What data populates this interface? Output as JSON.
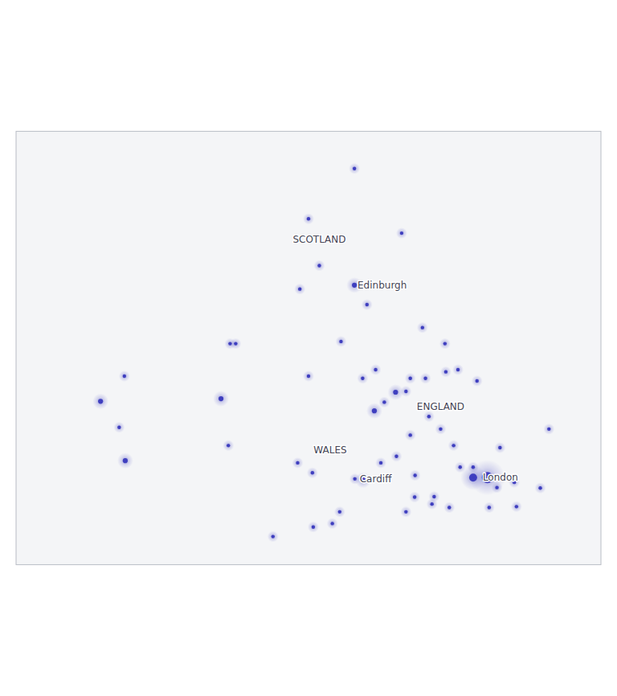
{
  "chart_data": {
    "type": "scatter",
    "x": [
      -4.25,
      -3.19,
      -2.1,
      -4.45,
      -3.19,
      -2.9,
      -1.62,
      -1.1,
      -2.24,
      -1.9,
      -1.55,
      -1.08,
      -0.36,
      -1.47,
      -1.9,
      -2.22,
      -0.12,
      -0.45,
      0.5,
      0.1,
      1.1,
      -1.4,
      -0.08,
      0.55,
      -1.0,
      -2.0,
      -3.53,
      -4.14,
      -5.07,
      -3.18,
      -4.16,
      -2.99,
      -1.8,
      -1.79,
      -0.75,
      0.17,
      1.3,
      -2.73,
      -3.0,
      -4.25,
      -3.5,
      -2.7,
      -0.9,
      -2.58,
      -6.27,
      -8.48,
      -6.1,
      -8.62,
      -9.05,
      -8.5,
      -6.06,
      -5.93,
      -2.0,
      -0.8,
      -1.2,
      -3.7,
      -4.5,
      -2.5,
      -1.35,
      -0.45,
      -4.0
    ],
    "values": [
      57.48,
      58.64,
      57.15,
      55.86,
      55.95,
      55.5,
      54.97,
      54.6,
      53.48,
      53.8,
      53.8,
      53.95,
      53.74,
      52.92,
      52.49,
      52.0,
      51.51,
      51.51,
      51.4,
      51.28,
      51.27,
      50.9,
      50.82,
      50.84,
      50.82,
      50.72,
      50.72,
      50.37,
      50.15,
      51.48,
      51.62,
      51.45,
      51.06,
      51.56,
      51.75,
      52.2,
      52.63,
      53.05,
      53.8,
      53.85,
      54.65,
      54.0,
      52.25,
      51.85,
      53.33,
      51.9,
      52.25,
      52.67,
      53.27,
      53.85,
      54.6,
      54.6,
      53.5,
      54.0,
      52.63,
      50.45,
      51.85,
      53.25,
      51.07,
      51.75,
      56.4
    ],
    "sizes": [
      1,
      1,
      1,
      1,
      2,
      1,
      1,
      1,
      2,
      1,
      1,
      1,
      1,
      1,
      1,
      1,
      10,
      5,
      1,
      1,
      1,
      1,
      1,
      1,
      1,
      1,
      1,
      1,
      1,
      1,
      1,
      2,
      1,
      1,
      1,
      1,
      1,
      2,
      1,
      1,
      1,
      1,
      1,
      1,
      2,
      2,
      1,
      1,
      2,
      1,
      1,
      1,
      1,
      1,
      1,
      1,
      1,
      1,
      1,
      1,
      1
    ],
    "color": "#3333bb",
    "xlim": [
      -11.0,
      2.5
    ],
    "ylim": [
      49.5,
      59.5
    ],
    "tick_labels": false,
    "grid": false,
    "annotations": [
      {
        "text": "SCOTLAND",
        "x": -4.0,
        "y": 57.0
      },
      {
        "text": "ENGLAND",
        "x": -1.2,
        "y": 53.15
      },
      {
        "text": "WALES",
        "x": -3.75,
        "y": 52.15
      },
      {
        "text": "Edinburgh",
        "x": -2.55,
        "y": 55.95
      },
      {
        "text": "Cardiff",
        "x": -2.7,
        "y": 51.48
      },
      {
        "text": "London",
        "x": 0.18,
        "y": 51.51
      }
    ]
  }
}
